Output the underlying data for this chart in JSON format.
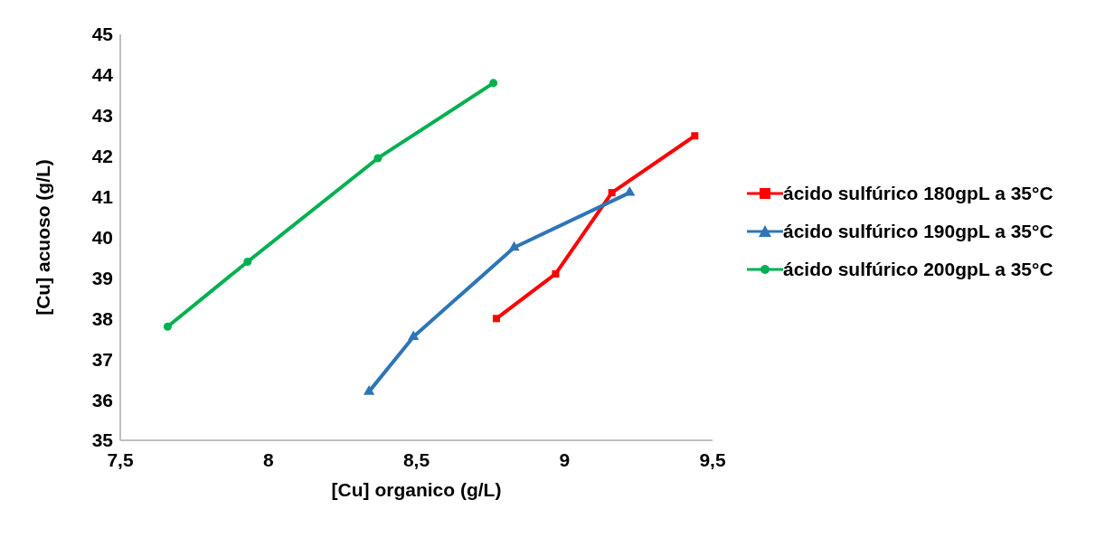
{
  "chart_data": {
    "type": "line",
    "xlabel": "[Cu] organico (g/L)",
    "ylabel": "[Cu] acuoso (g/L)",
    "xlim": [
      7.5,
      9.5
    ],
    "xticks": [
      {
        "value": 7.5,
        "label": "7,5"
      },
      8,
      {
        "value": 8.5,
        "label": "8,5"
      },
      9,
      {
        "value": 9.5,
        "label": "9,5"
      }
    ],
    "ylim": [
      35,
      45
    ],
    "yticks": [
      35,
      36,
      37,
      38,
      39,
      40,
      41,
      42,
      43,
      44,
      45
    ],
    "grid": false,
    "legend": "right",
    "line_style": "solid",
    "series": [
      {
        "name": "ácido sulfúrico 180gpL a 35°C",
        "color": "#ff0000",
        "marker": "square",
        "x": [
          8.77,
          8.97,
          9.16,
          9.44
        ],
        "values": [
          38.0,
          39.1,
          41.1,
          42.5
        ]
      },
      {
        "name": "ácido sulfúrico 190gpL a 35°C",
        "color": "#2e75b6",
        "marker": "triangle",
        "x": [
          8.34,
          8.49,
          8.83,
          9.22
        ],
        "values": [
          36.2,
          37.55,
          39.75,
          41.1
        ]
      },
      {
        "name": "ácido sulfúrico 200gpL a 35°C",
        "color": "#00b050",
        "marker": "circle",
        "x": [
          7.66,
          7.93,
          8.37,
          8.76
        ],
        "values": [
          37.8,
          39.4,
          41.95,
          43.8
        ]
      }
    ]
  }
}
